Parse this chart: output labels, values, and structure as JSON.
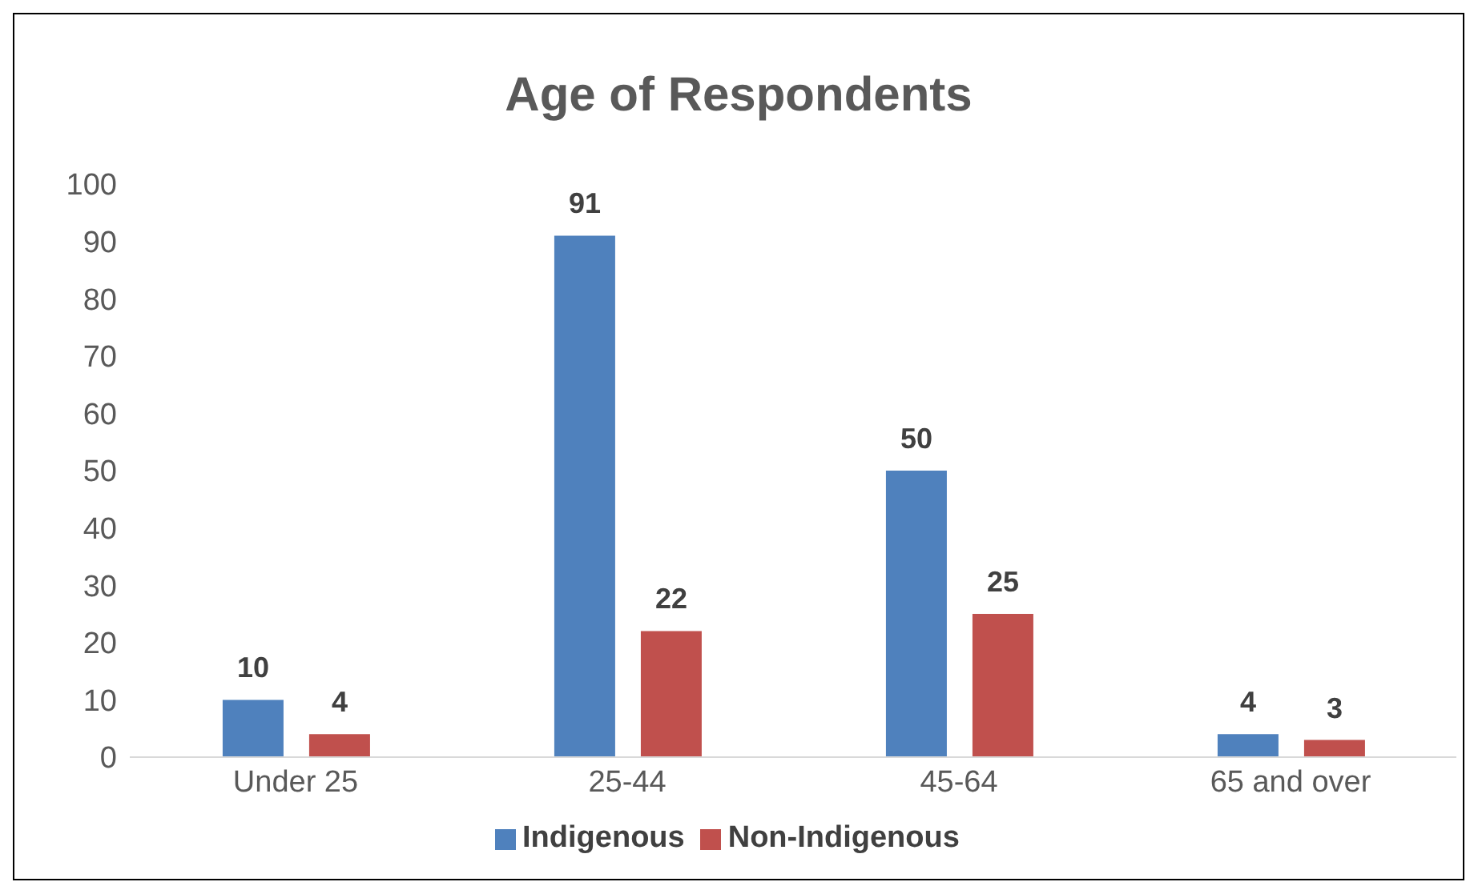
{
  "chart_data": {
    "type": "bar",
    "title": "Age of Respondents",
    "categories": [
      "Under 25",
      "25-44",
      "45-64",
      "65 and over"
    ],
    "series": [
      {
        "name": "Indigenous",
        "color": "#4f81bd",
        "values": [
          10,
          91,
          50,
          4
        ]
      },
      {
        "name": "Non-Indigenous",
        "color": "#c0504d",
        "values": [
          4,
          22,
          25,
          3
        ]
      }
    ],
    "ylim": [
      0,
      100
    ],
    "yticks": [
      0,
      10,
      20,
      30,
      40,
      50,
      60,
      70,
      80,
      90,
      100
    ],
    "grid": false,
    "legend": "bottom",
    "data_labels": true
  }
}
